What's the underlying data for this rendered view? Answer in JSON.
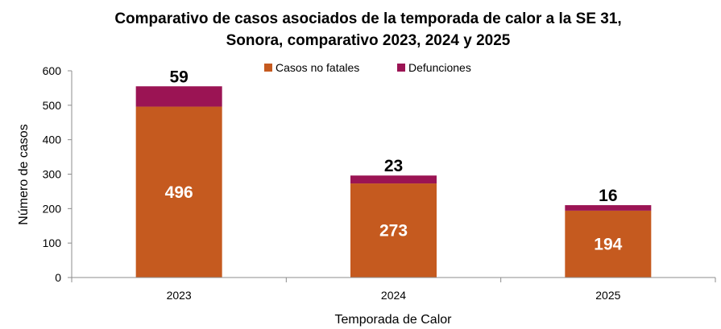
{
  "chart_data": {
    "type": "bar",
    "stacked": true,
    "title": "Comparativo de casos asociados de la temporada de calor a la SE 31,",
    "subtitle": "Sonora, comparativo 2023, 2024 y 2025",
    "xlabel": "Temporada de Calor",
    "ylabel": "Número de casos",
    "ylim": [
      0,
      600
    ],
    "yticks": [
      "0",
      "100",
      "200",
      "300",
      "400",
      "500",
      "600"
    ],
    "categories": [
      "2023",
      "2024",
      "2025"
    ],
    "series": [
      {
        "name": "Casos no fatales",
        "values": [
          496,
          273,
          194
        ],
        "color": "#C55A1F",
        "label_color": "#ffffff"
      },
      {
        "name": "Defunciones",
        "values": [
          59,
          23,
          16
        ],
        "color": "#9B1454",
        "label_color": "#000000"
      }
    ],
    "legend_position": "top-center",
    "grid": false
  }
}
